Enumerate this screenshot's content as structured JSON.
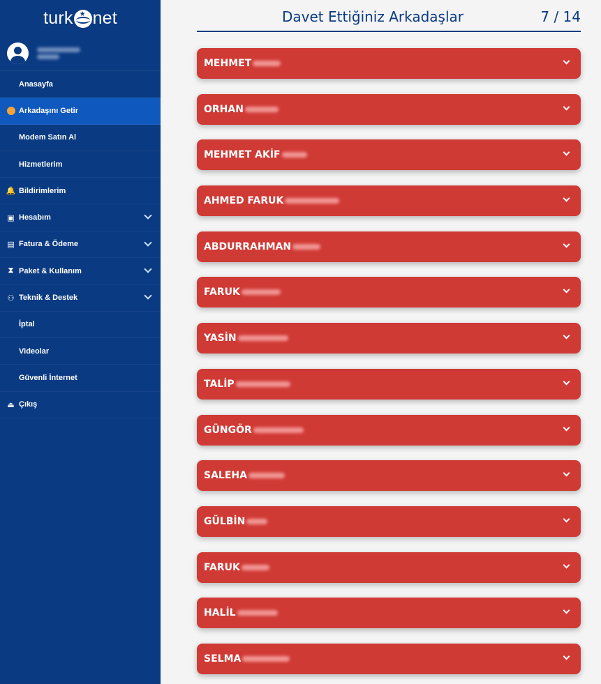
{
  "brand": {
    "logo_left": "turk",
    "logo_right": "net"
  },
  "sidebar": {
    "items": [
      {
        "label": "Anasayfa",
        "icon": "none",
        "active": false,
        "chevron": false
      },
      {
        "label": "Arkadaşını Getir",
        "icon": "orange-dot-icon",
        "active": true,
        "chevron": false
      },
      {
        "label": "Modem Satın Al",
        "icon": "none",
        "active": false,
        "chevron": false
      },
      {
        "label": "Hizmetlerim",
        "icon": "none",
        "active": false,
        "chevron": false
      },
      {
        "label": "Bildirimlerim",
        "icon": "bell-icon",
        "active": false,
        "chevron": false
      },
      {
        "label": "Hesabım",
        "icon": "id-card-icon",
        "active": false,
        "chevron": true
      },
      {
        "label": "Fatura & Ödeme",
        "icon": "receipt-icon",
        "active": false,
        "chevron": true
      },
      {
        "label": "Paket & Kullanım",
        "icon": "hourglass-icon",
        "active": false,
        "chevron": true
      },
      {
        "label": "Teknik & Destek",
        "icon": "users-icon",
        "active": false,
        "chevron": true
      },
      {
        "label": "İptal",
        "icon": "none",
        "active": false,
        "chevron": false
      },
      {
        "label": "Videolar",
        "icon": "none",
        "active": false,
        "chevron": false
      },
      {
        "label": "Güvenli İnternet",
        "icon": "none",
        "active": false,
        "chevron": false
      },
      {
        "label": "Çıkış",
        "icon": "eject-icon",
        "active": false,
        "chevron": false
      }
    ]
  },
  "header": {
    "title": "Davet Ettiğiniz Arkadaşlar",
    "count": "7 / 14"
  },
  "friends": [
    {
      "name": "MEHMET"
    },
    {
      "name": "ORHAN"
    },
    {
      "name": "MEHMET AKİF"
    },
    {
      "name": "AHMED FARUK"
    },
    {
      "name": "ABDURRAHMAN"
    },
    {
      "name": "FARUK"
    },
    {
      "name": "YASİN"
    },
    {
      "name": "TALİP"
    },
    {
      "name": "GÜNGÖR"
    },
    {
      "name": "SALEHA"
    },
    {
      "name": "GÜLBİN"
    },
    {
      "name": "FARUK"
    },
    {
      "name": "HALİL"
    },
    {
      "name": "SELMA"
    }
  ],
  "colors": {
    "sidebar": "#0a3a82",
    "active": "#0f58bd",
    "card": "#d03a35",
    "accent": "#f5a43a"
  }
}
